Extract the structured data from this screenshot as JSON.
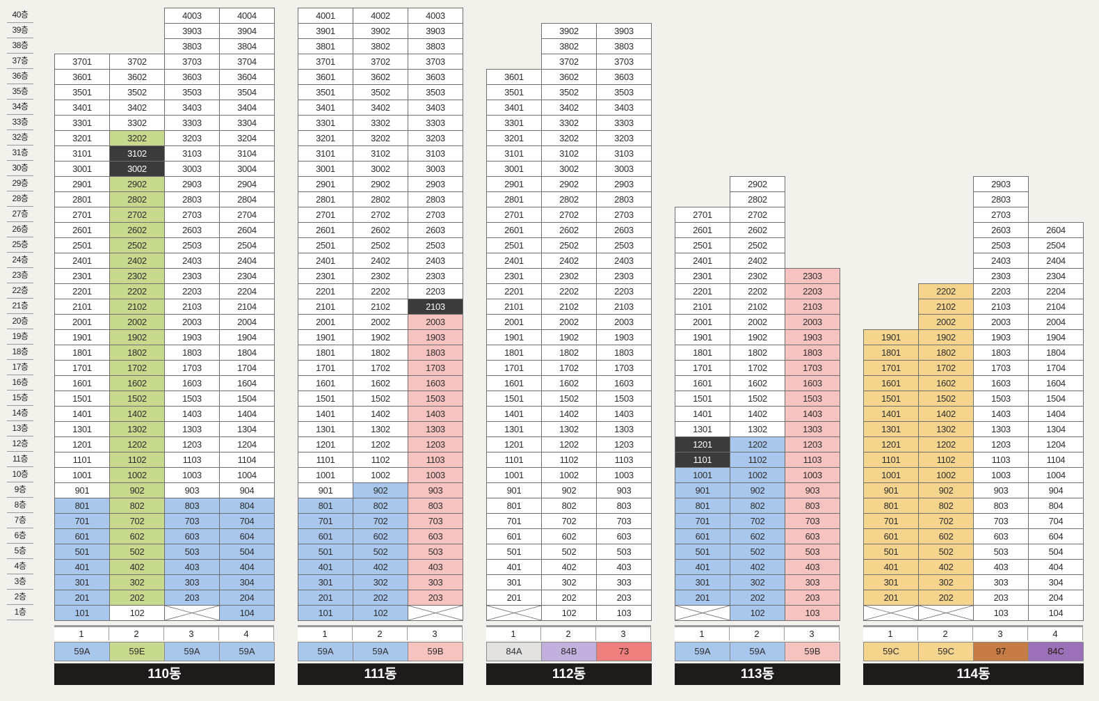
{
  "floors": [
    "1층",
    "2층",
    "3층",
    "4층",
    "5층",
    "6층",
    "7층",
    "8층",
    "9층",
    "10층",
    "11층",
    "12층",
    "13층",
    "14층",
    "15층",
    "16층",
    "17층",
    "18층",
    "19층",
    "20층",
    "21층",
    "22층",
    "23층",
    "24층",
    "25층",
    "26층",
    "27층",
    "28층",
    "29층",
    "30층",
    "31층",
    "32층",
    "33층",
    "34층",
    "35층",
    "36층",
    "37층",
    "38층",
    "39층",
    "40층"
  ],
  "colors": {
    "white": "#ffffff",
    "blue": "#a9c6ec",
    "green": "#c6d98d",
    "pink": "#f7c3c0",
    "yellow": "#f5d48e",
    "dark": "#3b3b3b",
    "lightgray": "#e4e1e1",
    "lavender": "#c2b1dd",
    "salmon": "#ee7f7f",
    "brown": "#c67d45",
    "purple": "#9a70b9"
  },
  "buildings": [
    {
      "name": "110동",
      "lines": [
        {
          "no": "1",
          "type": "59A",
          "typeColor": "blue",
          "min": 1,
          "max": 37,
          "colors": [
            [
              1,
              8,
              "blue"
            ]
          ],
          "empty": []
        },
        {
          "no": "2",
          "type": "59E",
          "typeColor": "green",
          "min": 1,
          "max": 37,
          "colors": [
            [
              2,
              32,
              "green"
            ],
            [
              30,
              31,
              "dark"
            ]
          ],
          "empty": []
        },
        {
          "no": "3",
          "type": "59A",
          "typeColor": "blue",
          "min": 1,
          "max": 40,
          "colors": [
            [
              2,
              8,
              "blue"
            ]
          ],
          "empty": [
            1
          ]
        },
        {
          "no": "4",
          "type": "59A",
          "typeColor": "blue",
          "min": 1,
          "max": 40,
          "colors": [
            [
              1,
              8,
              "blue"
            ]
          ],
          "empty": []
        }
      ]
    },
    {
      "name": "111동",
      "lines": [
        {
          "no": "1",
          "type": "59A",
          "typeColor": "blue",
          "min": 1,
          "max": 40,
          "colors": [
            [
              1,
              8,
              "blue"
            ]
          ],
          "empty": []
        },
        {
          "no": "2",
          "type": "59A",
          "typeColor": "blue",
          "min": 1,
          "max": 40,
          "colors": [
            [
              1,
              9,
              "blue"
            ]
          ],
          "empty": []
        },
        {
          "no": "3",
          "type": "59B",
          "typeColor": "pink",
          "min": 1,
          "max": 40,
          "colors": [
            [
              2,
              20,
              "pink"
            ],
            [
              21,
              21,
              "dark"
            ]
          ],
          "empty": [
            1
          ]
        }
      ]
    },
    {
      "name": "112동",
      "lines": [
        {
          "no": "1",
          "type": "84A",
          "typeColor": "lightgray",
          "min": 1,
          "max": 36,
          "colors": [],
          "empty": [
            1
          ]
        },
        {
          "no": "2",
          "type": "84B",
          "typeColor": "lavender",
          "min": 1,
          "max": 39,
          "colors": [],
          "empty": []
        },
        {
          "no": "3",
          "type": "73",
          "typeColor": "salmon",
          "min": 1,
          "max": 39,
          "colors": [],
          "empty": []
        }
      ]
    },
    {
      "name": "113동",
      "lines": [
        {
          "no": "1",
          "type": "59A",
          "typeColor": "blue",
          "min": 1,
          "max": 27,
          "colors": [
            [
              2,
              10,
              "blue"
            ],
            [
              11,
              12,
              "dark"
            ]
          ],
          "empty": [
            1
          ]
        },
        {
          "no": "2",
          "type": "59A",
          "typeColor": "blue",
          "min": 1,
          "max": 29,
          "colors": [
            [
              1,
              12,
              "blue"
            ]
          ],
          "empty": []
        },
        {
          "no": "3",
          "type": "59B",
          "typeColor": "pink",
          "min": 1,
          "max": 23,
          "colors": [
            [
              1,
              23,
              "pink"
            ]
          ],
          "empty": []
        }
      ]
    },
    {
      "name": "114동",
      "lines": [
        {
          "no": "1",
          "type": "59C",
          "typeColor": "yellow",
          "min": 1,
          "max": 19,
          "colors": [
            [
              2,
              19,
              "yellow"
            ]
          ],
          "empty": [
            1
          ]
        },
        {
          "no": "2",
          "type": "59C",
          "typeColor": "yellow",
          "min": 1,
          "max": 22,
          "colors": [
            [
              2,
              22,
              "yellow"
            ]
          ],
          "empty": [
            1
          ]
        },
        {
          "no": "3",
          "type": "97",
          "typeColor": "brown",
          "min": 1,
          "max": 29,
          "colors": [],
          "empty": []
        },
        {
          "no": "4",
          "type": "84C",
          "typeColor": "purple",
          "min": 1,
          "max": 26,
          "colors": [],
          "empty": []
        }
      ]
    }
  ]
}
